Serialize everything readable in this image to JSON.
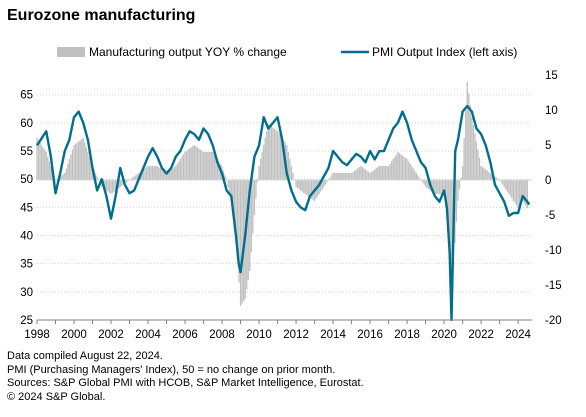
{
  "title": "Eurozone manufacturing",
  "chart_data": {
    "type": "bar+line",
    "legend": [
      "Manufacturing output YOY % change",
      "PMI Output Index (left axis)"
    ],
    "legend_position": "top",
    "grid": "horizontal dotted",
    "colors": {
      "bars": "#c0c0c0",
      "line": "#006e8c",
      "zero_line": "#d9d9d9"
    },
    "left_axis": {
      "ticks": [
        25,
        30,
        35,
        40,
        45,
        50,
        55,
        60,
        65
      ],
      "ylim": [
        25,
        68.5
      ]
    },
    "right_axis": {
      "ticks": [
        15,
        10,
        5,
        0,
        -5,
        -10,
        -15,
        -20
      ],
      "ylim": [
        -20,
        15
      ]
    },
    "x_ticks": [
      "1998",
      "2000",
      "2002",
      "2004",
      "2006",
      "2008",
      "2010",
      "2012",
      "2014",
      "2016",
      "2018",
      "2020",
      "2022",
      "2024"
    ],
    "xlim": [
      1998.0,
      2024.75
    ],
    "series": [
      {
        "name": "Manufacturing output YOY % change",
        "axis": "right",
        "kind": "bar",
        "x": [
          1998.0,
          1998.5,
          1999.0,
          1999.5,
          2000.0,
          2000.5,
          2001.0,
          2001.5,
          2002.0,
          2002.5,
          2003.0,
          2003.5,
          2004.0,
          2004.5,
          2005.0,
          2005.5,
          2006.0,
          2006.5,
          2007.0,
          2007.5,
          2008.0,
          2008.25,
          2008.5,
          2008.75,
          2009.0,
          2009.25,
          2009.5,
          2009.75,
          2010.0,
          2010.5,
          2011.0,
          2011.5,
          2012.0,
          2012.5,
          2013.0,
          2013.5,
          2014.0,
          2014.5,
          2015.0,
          2015.5,
          2016.0,
          2016.5,
          2017.0,
          2017.5,
          2018.0,
          2018.5,
          2019.0,
          2019.5,
          2020.0,
          2020.25,
          2020.4,
          2020.5,
          2020.75,
          2021.0,
          2021.25,
          2021.5,
          2022.0,
          2022.5,
          2023.0,
          2023.5,
          2024.0,
          2024.25,
          2024.5
        ],
        "values": [
          6,
          4,
          0,
          1,
          5,
          6,
          2,
          -1,
          -2,
          -1,
          0,
          1,
          2,
          2,
          1,
          2,
          4,
          5,
          4,
          4,
          2,
          0,
          -3,
          -8,
          -18,
          -17,
          -13,
          -5,
          2,
          8,
          7,
          5,
          -1,
          -2,
          -3,
          -1,
          1,
          1,
          1,
          2,
          1,
          2,
          2,
          4,
          3,
          1,
          -1,
          -2,
          -2,
          -8,
          -20,
          -12,
          -3,
          2,
          14,
          9,
          2,
          1,
          0,
          -2,
          -4,
          -3,
          -4
        ]
      },
      {
        "name": "PMI Output Index (left axis)",
        "axis": "left",
        "kind": "line",
        "x": [
          1998.0,
          1998.5,
          1998.75,
          1999.0,
          1999.25,
          1999.5,
          1999.75,
          2000.0,
          2000.25,
          2000.5,
          2000.75,
          2001.0,
          2001.25,
          2001.5,
          2001.75,
          2002.0,
          2002.25,
          2002.5,
          2002.75,
          2003.0,
          2003.25,
          2003.5,
          2003.75,
          2004.0,
          2004.25,
          2004.5,
          2004.75,
          2005.0,
          2005.25,
          2005.5,
          2005.75,
          2006.0,
          2006.25,
          2006.5,
          2006.75,
          2007.0,
          2007.25,
          2007.5,
          2007.75,
          2008.0,
          2008.25,
          2008.5,
          2008.75,
          2008.9,
          2009.0,
          2009.25,
          2009.5,
          2009.75,
          2010.0,
          2010.25,
          2010.5,
          2010.75,
          2011.0,
          2011.25,
          2011.5,
          2011.75,
          2012.0,
          2012.25,
          2012.5,
          2012.75,
          2013.0,
          2013.25,
          2013.5,
          2013.75,
          2014.0,
          2014.25,
          2014.5,
          2014.75,
          2015.0,
          2015.25,
          2015.5,
          2015.75,
          2016.0,
          2016.25,
          2016.5,
          2016.75,
          2017.0,
          2017.25,
          2017.5,
          2017.75,
          2018.0,
          2018.25,
          2018.5,
          2018.75,
          2019.0,
          2019.25,
          2019.5,
          2019.75,
          2020.0,
          2020.15,
          2020.3,
          2020.4,
          2020.5,
          2020.6,
          2020.75,
          2021.0,
          2021.25,
          2021.5,
          2021.75,
          2022.0,
          2022.25,
          2022.5,
          2022.75,
          2023.0,
          2023.25,
          2023.5,
          2023.75,
          2024.0,
          2024.25,
          2024.5,
          2024.6
        ],
        "values": [
          56,
          58.5,
          54,
          47.5,
          51,
          55,
          57,
          61,
          62,
          60,
          57,
          52,
          48,
          50,
          47,
          43,
          47,
          52,
          49,
          47.5,
          48,
          50,
          52,
          54,
          55.5,
          54,
          52,
          51,
          52,
          54,
          55,
          57,
          58.5,
          58,
          57,
          59,
          58,
          56,
          53,
          51,
          48,
          47,
          40,
          35,
          33.5,
          40,
          48,
          54,
          56,
          61,
          59,
          60,
          61,
          57,
          51,
          48,
          46,
          45,
          44.5,
          47,
          48,
          49,
          50.5,
          52,
          55,
          54,
          53,
          52.5,
          53.5,
          54.5,
          54,
          53,
          55,
          53.5,
          55,
          55,
          57,
          59,
          60,
          62,
          60,
          57,
          55,
          53,
          52,
          49,
          47,
          46,
          48,
          45,
          37,
          25,
          40,
          55,
          57,
          62,
          63,
          62,
          59,
          58,
          56,
          53,
          49,
          47.5,
          46,
          43.5,
          44,
          44,
          47,
          46,
          45.5
        ]
      }
    ]
  },
  "notes": [
    "Data compiled August 22, 2024.",
    "PMI (Purchasing Managers' Index), 50 = no change on prior month.",
    "Sources: S&P Global PMI with HCOB, S&P Market Intelligence, Eurostat.",
    "© 2024 S&P Global."
  ]
}
